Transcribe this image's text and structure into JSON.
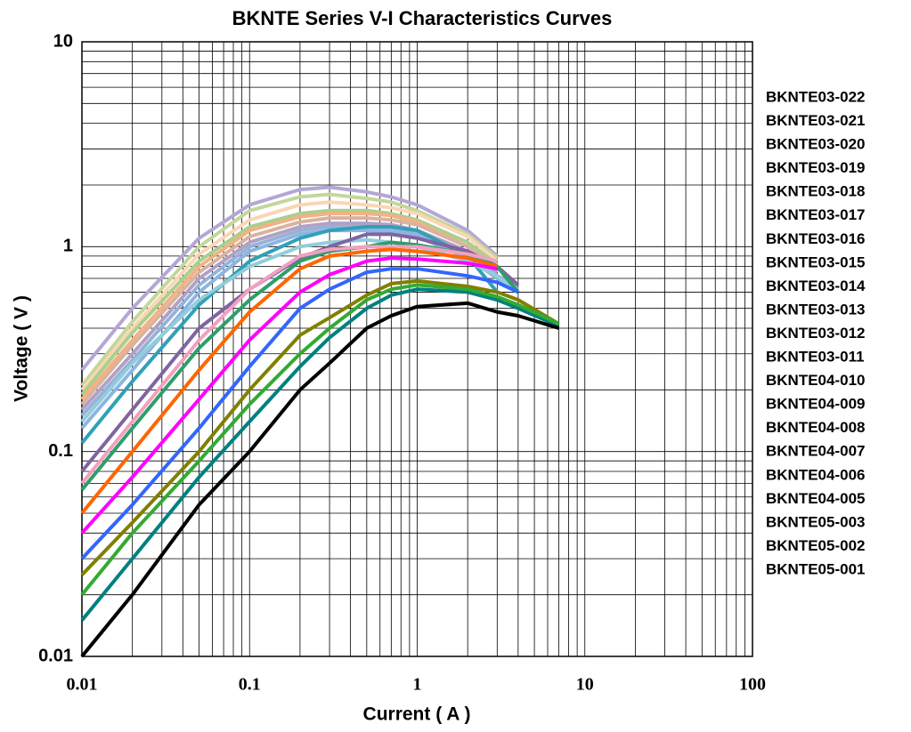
{
  "chart_data": {
    "type": "line",
    "title": "BKNTE  Series  V-I  Characteristics  Curves",
    "x_label": "Current ( A )",
    "y_label": "Voltage ( V )",
    "log_x": true,
    "log_y": true,
    "grid": true,
    "legend": "right",
    "xlim": [
      0.01,
      100
    ],
    "ylim": [
      0.01,
      10
    ],
    "xticks": [
      0.01,
      0.1,
      1,
      10,
      100
    ],
    "yticks": [
      0.01,
      0.1,
      1,
      10
    ],
    "x": [
      0.01,
      0.02,
      0.05,
      0.1,
      0.2,
      0.3,
      0.5,
      0.7,
      1,
      2,
      3,
      4,
      7
    ],
    "series": [
      {
        "name": "BKNTE03-022",
        "color": "#b4a7d6",
        "values": [
          0.25,
          0.5,
          1.1,
          1.6,
          1.9,
          1.95,
          1.85,
          1.75,
          1.6,
          1.2,
          0.9,
          null,
          null
        ]
      },
      {
        "name": "BKNTE03-021",
        "color": "#c4d79b",
        "values": [
          0.21,
          0.43,
          1.0,
          1.5,
          1.75,
          1.8,
          1.72,
          1.65,
          1.5,
          1.15,
          0.88,
          null,
          null
        ]
      },
      {
        "name": "BKNTE03-020",
        "color": "#fcd5b4",
        "values": [
          0.2,
          0.4,
          0.92,
          1.35,
          1.6,
          1.65,
          1.6,
          1.55,
          1.45,
          1.12,
          0.85,
          null,
          null
        ]
      },
      {
        "name": "BKNTE03-019",
        "color": "#a9d08e",
        "values": [
          0.19,
          0.38,
          0.85,
          1.25,
          1.45,
          1.5,
          1.5,
          1.45,
          1.35,
          1.05,
          0.82,
          null,
          null
        ]
      },
      {
        "name": "BKNTE03-018",
        "color": "#f4b183",
        "values": [
          0.18,
          0.35,
          0.8,
          1.2,
          1.4,
          1.45,
          1.45,
          1.42,
          1.32,
          1.0,
          0.8,
          null,
          null
        ]
      },
      {
        "name": "BKNTE03-017",
        "color": "#d9b3a0",
        "values": [
          0.17,
          0.33,
          0.75,
          1.12,
          1.32,
          1.38,
          1.38,
          1.35,
          1.28,
          1.0,
          0.8,
          null,
          null
        ]
      },
      {
        "name": "BKNTE03-016",
        "color": "#b1a0c7",
        "values": [
          0.16,
          0.3,
          0.7,
          1.05,
          1.25,
          1.3,
          1.3,
          1.28,
          1.2,
          0.95,
          0.75,
          null,
          null
        ]
      },
      {
        "name": "BKNTE03-015",
        "color": "#95b3d7",
        "values": [
          0.15,
          0.28,
          0.65,
          1.0,
          1.2,
          1.25,
          1.25,
          1.22,
          1.15,
          0.9,
          0.72,
          0.65,
          null
        ]
      },
      {
        "name": "BKNTE03-014",
        "color": "#8db4e2",
        "values": [
          0.13,
          0.25,
          0.6,
          0.95,
          1.15,
          1.2,
          1.2,
          1.18,
          1.12,
          0.88,
          0.7,
          0.62,
          null
        ]
      },
      {
        "name": "BKNTE03-013",
        "color": "#31a0b8",
        "values": [
          0.11,
          0.22,
          0.52,
          0.85,
          1.1,
          1.2,
          1.25,
          1.25,
          1.2,
          0.9,
          0.6,
          null,
          null
        ]
      },
      {
        "name": "BKNTE03-012",
        "color": "#92cddc",
        "values": [
          0.14,
          0.27,
          0.55,
          0.8,
          1.0,
          1.05,
          1.08,
          1.05,
          1.0,
          0.85,
          0.72,
          0.6,
          null
        ]
      },
      {
        "name": "BKNTE03-011",
        "color": "#8064a2",
        "values": [
          0.08,
          0.16,
          0.4,
          0.62,
          0.88,
          1.0,
          1.15,
          1.15,
          1.1,
          0.95,
          0.8,
          0.65,
          null
        ]
      },
      {
        "name": "BKNTE04-010",
        "color": "#2e9e6a",
        "values": [
          0.065,
          0.13,
          0.32,
          0.55,
          0.85,
          0.95,
          1.0,
          1.05,
          1.02,
          0.92,
          0.8,
          0.6,
          null
        ]
      },
      {
        "name": "BKNTE04-009",
        "color": "#f2a0c0",
        "values": [
          0.07,
          0.14,
          0.35,
          0.62,
          0.9,
          0.97,
          1.0,
          1.0,
          1.0,
          0.92,
          0.85,
          null,
          null
        ]
      },
      {
        "name": "BKNTE04-008",
        "color": "#ff6600",
        "values": [
          0.05,
          0.1,
          0.25,
          0.48,
          0.78,
          0.9,
          0.95,
          0.97,
          0.95,
          0.88,
          0.8,
          null,
          null
        ]
      },
      {
        "name": "BKNTE04-007",
        "color": "#ff00ff",
        "values": [
          0.04,
          0.075,
          0.18,
          0.35,
          0.6,
          0.73,
          0.85,
          0.88,
          0.87,
          0.83,
          0.78,
          null,
          null
        ]
      },
      {
        "name": "BKNTE04-006",
        "color": "#3366ff",
        "values": [
          0.03,
          0.055,
          0.13,
          0.26,
          0.5,
          0.62,
          0.75,
          0.78,
          0.78,
          0.72,
          0.67,
          0.6,
          null
        ]
      },
      {
        "name": "BKNTE04-005",
        "color": "#808000",
        "values": [
          0.025,
          0.045,
          0.1,
          0.2,
          0.37,
          0.45,
          0.58,
          0.66,
          0.68,
          0.64,
          0.6,
          0.55,
          0.42
        ]
      },
      {
        "name": "BKNTE05-003",
        "color": "#008080",
        "values": [
          0.015,
          0.03,
          0.075,
          0.14,
          0.26,
          0.36,
          0.5,
          0.58,
          0.62,
          0.6,
          0.55,
          0.5,
          0.41
        ]
      },
      {
        "name": "BKNTE05-002",
        "color": "#33aa33",
        "values": [
          0.02,
          0.04,
          0.09,
          0.17,
          0.3,
          0.4,
          0.55,
          0.62,
          0.65,
          0.62,
          0.57,
          0.52,
          0.42
        ]
      },
      {
        "name": "BKNTE05-001",
        "color": "#000000",
        "values": [
          0.01,
          0.02,
          0.055,
          0.1,
          0.2,
          0.27,
          0.4,
          0.46,
          0.51,
          0.53,
          0.48,
          0.46,
          0.4
        ]
      }
    ]
  }
}
